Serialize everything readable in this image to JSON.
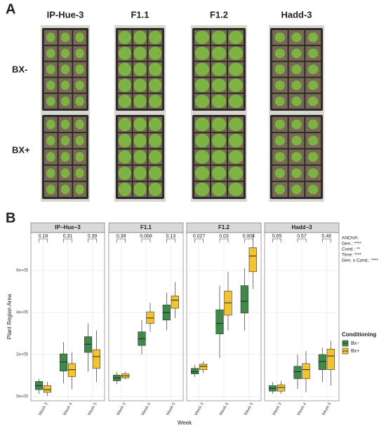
{
  "panel_a": {
    "label": "A",
    "columns": [
      "IP-Hue-3",
      "F1.1",
      "F1.2",
      "Hadd-3"
    ],
    "rows": [
      "BX-",
      "BX+"
    ]
  },
  "panel_b": {
    "label": "B"
  },
  "chart_data": {
    "type": "box",
    "y_label": "Plant Region Area",
    "x_label": "Week",
    "categories": [
      "Week 3",
      "Week 4",
      "Week 5"
    ],
    "ylim": [
      -20000,
      780000
    ],
    "yticks": [
      {
        "value": 0,
        "label": "0e+00"
      },
      {
        "value": 200000,
        "label": "2e+05"
      },
      {
        "value": 400000,
        "label": "4e+05"
      },
      {
        "value": 600000,
        "label": "6e+05"
      }
    ],
    "grid": true,
    "legend": {
      "title": "Conditioning",
      "position": "right"
    },
    "series": [
      {
        "name": "Bx−",
        "color": "#3f8a4a"
      },
      {
        "name": "Bx+",
        "color": "#f4c430"
      }
    ],
    "annotation": [
      "ANOVA:",
      "Gen.: ****",
      "Cond.: **",
      "Time: ****",
      "Gen. x Cond.: ****"
    ],
    "facets": [
      {
        "title": "IP−Hue−3",
        "p_values": [
          0.18,
          0.31,
          0.39
        ],
        "boxes": [
          [
            {
              "low": 13000,
              "q1": 33000,
              "median": 52000,
              "q3": 72000,
              "high": 85000
            },
            {
              "low": 62000,
              "q1": 121000,
              "median": 164000,
              "q3": 203000,
              "high": 259000
            },
            {
              "low": 118000,
              "q1": 210000,
              "median": 249000,
              "q3": 285000,
              "high": 348000
            }
          ],
          [
            {
              "low": 3000,
              "q1": 20000,
              "median": 33000,
              "q3": 52000,
              "high": 69000
            },
            {
              "low": 36000,
              "q1": 95000,
              "median": 128000,
              "q3": 157000,
              "high": 210000
            },
            {
              "low": 69000,
              "q1": 134000,
              "median": 190000,
              "q3": 223000,
              "high": 315000
            }
          ]
        ]
      },
      {
        "title": "F1.1",
        "p_values": [
          0.38,
          0.068,
          0.13
        ],
        "boxes": [
          [
            {
              "low": 59000,
              "q1": 75000,
              "median": 89000,
              "q3": 102000,
              "high": 118000
            },
            {
              "low": 200000,
              "q1": 243000,
              "median": 275000,
              "q3": 308000,
              "high": 364000
            },
            {
              "low": 315000,
              "q1": 364000,
              "median": 400000,
              "q3": 436000,
              "high": 495000
            }
          ],
          [
            {
              "low": 82000,
              "q1": 89000,
              "median": 98000,
              "q3": 108000,
              "high": 118000
            },
            {
              "low": 308000,
              "q1": 348000,
              "median": 374000,
              "q3": 403000,
              "high": 446000
            },
            {
              "low": 374000,
              "q1": 420000,
              "median": 459000,
              "q3": 479000,
              "high": 544000
            }
          ]
        ]
      },
      {
        "title": "F1.2",
        "p_values": [
          0.027,
          0.03,
          0.004
        ],
        "boxes": [
          [
            {
              "low": 92000,
              "q1": 108000,
              "median": 118000,
              "q3": 134000,
              "high": 151000
            },
            {
              "low": 184000,
              "q1": 298000,
              "median": 348000,
              "q3": 413000,
              "high": 528000
            },
            {
              "low": 315000,
              "q1": 397000,
              "median": 453000,
              "q3": 528000,
              "high": 610000
            }
          ],
          [
            {
              "low": 111000,
              "q1": 128000,
              "median": 144000,
              "q3": 154000,
              "high": 167000
            },
            {
              "low": 315000,
              "q1": 387000,
              "median": 446000,
              "q3": 502000,
              "high": 593000
            },
            {
              "low": 512000,
              "q1": 594000,
              "median": 669000,
              "q3": 708000,
              "high": 774000
            }
          ]
        ]
      },
      {
        "title": "Hadd−3",
        "p_values": [
          0.65,
          0.57,
          0.46
        ],
        "boxes": [
          [
            {
              "low": 13000,
              "q1": 26000,
              "median": 39000,
              "q3": 52000,
              "high": 69000
            },
            {
              "low": 36000,
              "q1": 85000,
              "median": 118000,
              "q3": 144000,
              "high": 200000
            },
            {
              "low": 69000,
              "q1": 128000,
              "median": 167000,
              "q3": 200000,
              "high": 233000
            }
          ],
          [
            {
              "low": 13000,
              "q1": 26000,
              "median": 43000,
              "q3": 56000,
              "high": 75000
            },
            {
              "low": 20000,
              "q1": 85000,
              "median": 128000,
              "q3": 157000,
              "high": 216000
            },
            {
              "low": 52000,
              "q1": 128000,
              "median": 193000,
              "q3": 226000,
              "high": 266000
            }
          ]
        ]
      }
    ]
  }
}
